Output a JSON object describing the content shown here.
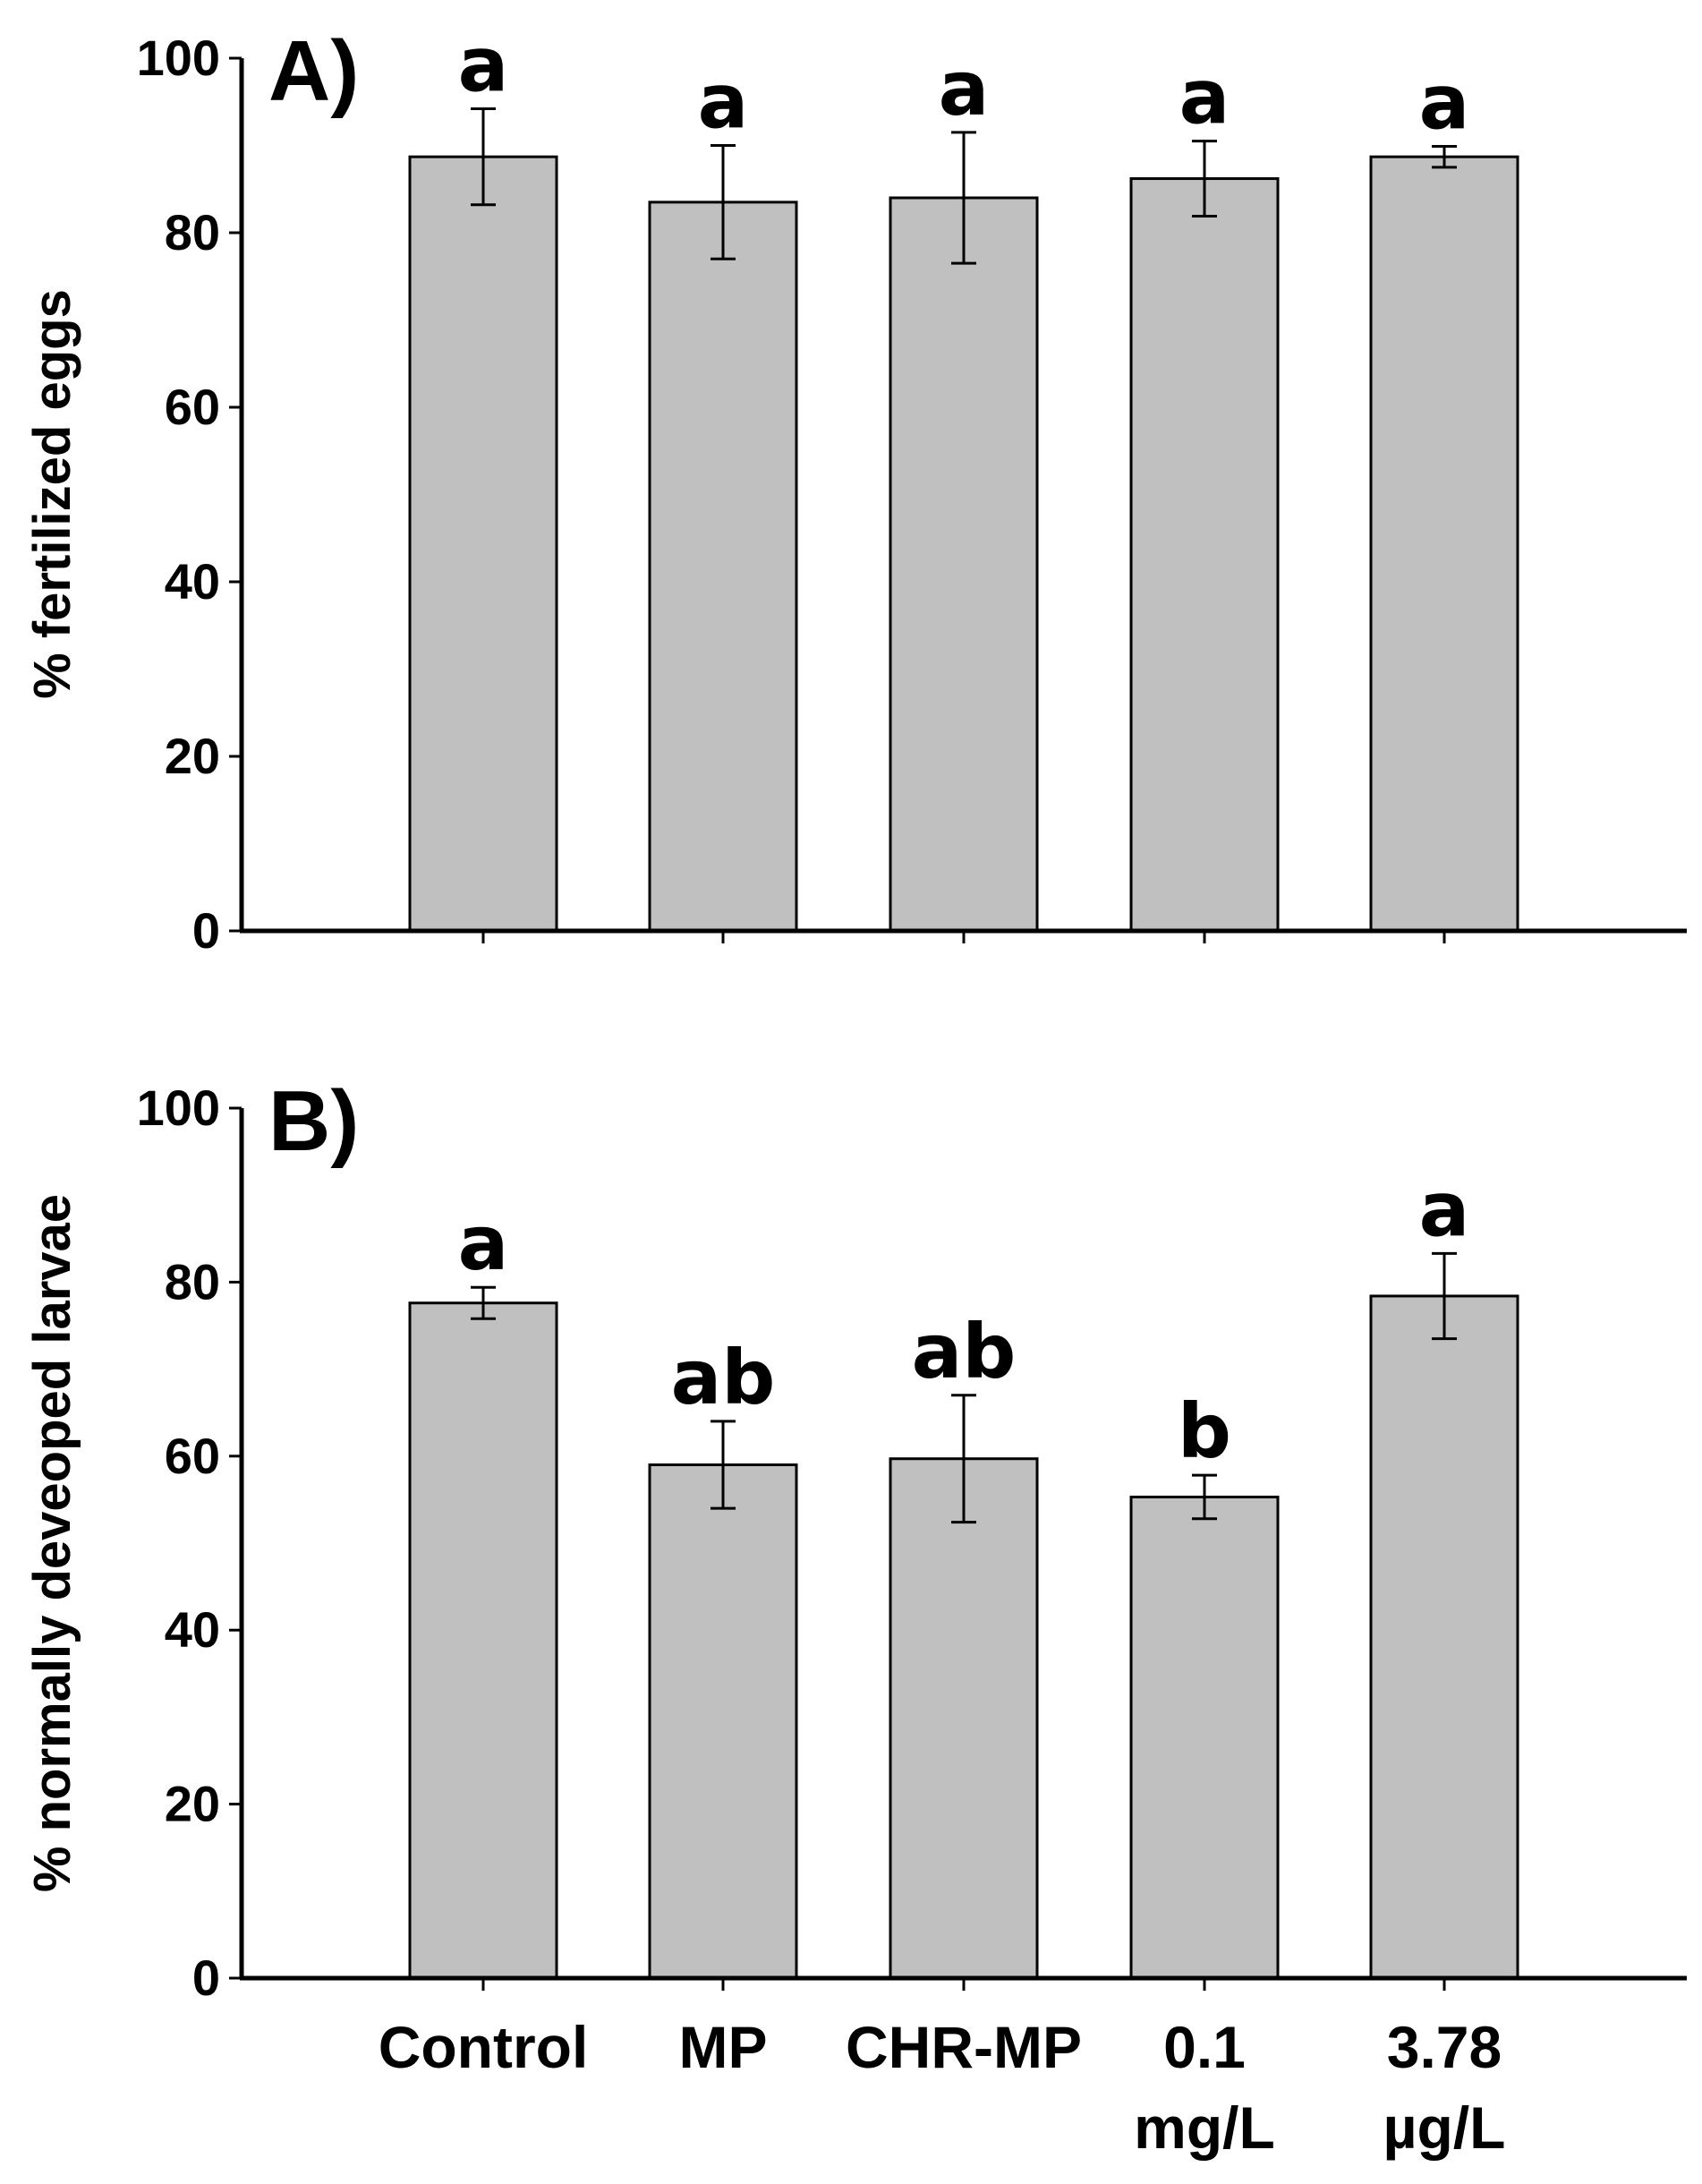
{
  "chart_data": [
    {
      "type": "bar",
      "panel": "A)",
      "ylabel": "% fertilized eggs",
      "ylim": [
        0,
        100
      ],
      "yticks": [
        "0",
        "20",
        "40",
        "60",
        "80",
        "100"
      ],
      "categories": [
        "Control",
        "MP",
        "CHR-MP",
        "0.1 mg/L",
        "3.78 µg/L"
      ],
      "values": [
        88.7,
        83.5,
        84.0,
        86.2,
        88.7
      ],
      "errors": [
        5.5,
        6.5,
        7.5,
        4.3,
        1.2
      ],
      "significance": [
        "a",
        "a",
        "a",
        "a",
        "a"
      ]
    },
    {
      "type": "bar",
      "panel": "B)",
      "ylabel": "% normally deveoped larvae",
      "ylim": [
        0,
        100
      ],
      "yticks": [
        "0",
        "20",
        "40",
        "60",
        "80",
        "100"
      ],
      "categories": [
        "Control",
        "MP",
        "CHR-MP",
        "0.1 mg/L",
        "3.78 µg/L"
      ],
      "values": [
        77.6,
        59.0,
        59.7,
        55.3,
        78.4
      ],
      "errors": [
        1.8,
        5.0,
        7.3,
        2.5,
        4.9
      ],
      "significance": [
        "a",
        "ab",
        "ab",
        "b",
        "a"
      ]
    }
  ],
  "xaxis": {
    "labels": [
      {
        "line1": "Control",
        "line2": ""
      },
      {
        "line1": "MP",
        "line2": ""
      },
      {
        "line1": "CHR-MP",
        "line2": ""
      },
      {
        "line1": "0.1",
        "line2": "mg/L"
      },
      {
        "line1": "3.78",
        "line2": "µg/L"
      }
    ]
  }
}
